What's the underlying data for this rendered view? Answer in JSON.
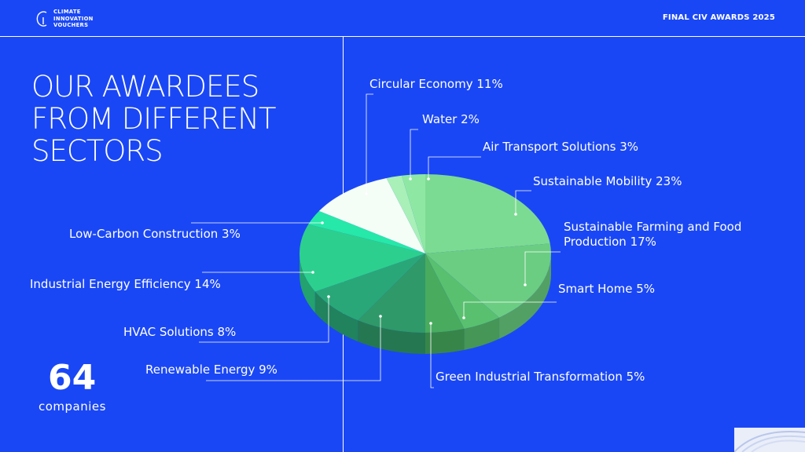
{
  "header": {
    "logo_lines": [
      "CLIMATE",
      "INNOVATION",
      "VOUCHERS"
    ],
    "event": "FINAL CIV AWARDS 2025"
  },
  "title_lines": [
    "OUR AWARDEES",
    "FROM DIFFERENT",
    "SECTORS"
  ],
  "summary": {
    "count": "64",
    "label": "companies"
  },
  "chart_data": {
    "type": "pie",
    "style": "3d",
    "slices": [
      {
        "label": "Sustainable Mobility 23%",
        "value": 23,
        "color": "#7cdb92"
      },
      {
        "label": "Sustainable Farming and Food Production 17%",
        "label_lines": [
          "Sustainable Farming and Food",
          "Production 17%"
        ],
        "value": 17,
        "color": "#6bcd82"
      },
      {
        "label": "Smart Home 5%",
        "value": 5,
        "color": "#59c06f"
      },
      {
        "label": "Green Industrial Transformation 5%",
        "value": 5,
        "color": "#48ab5e"
      },
      {
        "label": "Renewable Energy 9%",
        "value": 9,
        "color": "#2f9969"
      },
      {
        "label": "HVAC Solutions 8%",
        "value": 8,
        "color": "#2aa778"
      },
      {
        "label": "Industrial Energy Efficiency 14%",
        "value": 14,
        "color": "#2dcf8e"
      },
      {
        "label": "Low-Carbon Construction 3%",
        "value": 3,
        "color": "#26e8a8"
      },
      {
        "label": "Circular Economy 11%",
        "value": 11,
        "color": "#f4fdf6"
      },
      {
        "label": "Water 2%",
        "value": 2,
        "color": "#a8f0b8"
      },
      {
        "label": "Air Transport Solutions 3%",
        "value": 3,
        "color": "#8ee8a4"
      }
    ]
  }
}
